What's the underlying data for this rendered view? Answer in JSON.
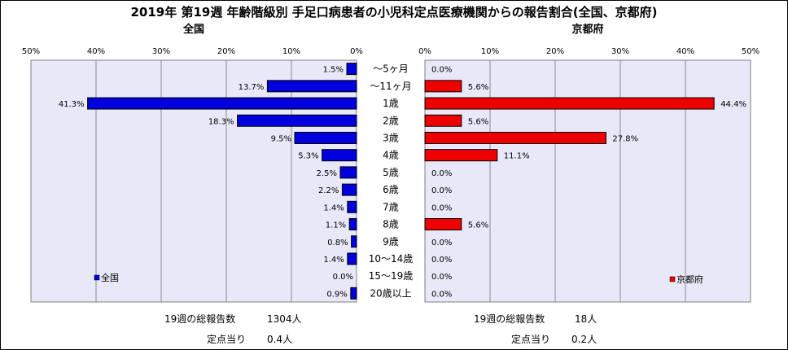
{
  "chart_data": {
    "type": "bar",
    "title": "2019年 第19週 年齢階級別 手足口病患者の小児科定点医療機関からの報告割合(全国、京都府)",
    "categories": [
      "～5ヶ月",
      "～11ヶ月",
      "1歳",
      "2歳",
      "3歳",
      "4歳",
      "5歳",
      "6歳",
      "7歳",
      "8歳",
      "9歳",
      "10～14歳",
      "15～19歳",
      "20歳以上"
    ],
    "xlim": [
      0,
      50
    ],
    "tick_labels": [
      "0%",
      "10%",
      "20%",
      "30%",
      "40%",
      "50%"
    ],
    "panels": [
      {
        "key": "national",
        "subtitle": "全国",
        "legend": "全国",
        "color": "#0000dd",
        "values": [
          1.5,
          13.7,
          41.3,
          18.3,
          9.5,
          5.3,
          2.5,
          2.2,
          1.4,
          1.1,
          0.8,
          1.4,
          0.0,
          0.9
        ],
        "value_labels": [
          "1.5%",
          "13.7%",
          "41.3%",
          "18.3%",
          "9.5%",
          "5.3%",
          "2.5%",
          "2.2%",
          "1.4%",
          "1.1%",
          "0.8%",
          "1.4%",
          "0.0%",
          "0.9%"
        ],
        "footer": {
          "total_label": "19週の総報告数",
          "total_value": "1304人",
          "per_label": "定点当り",
          "per_value": "0.4人"
        }
      },
      {
        "key": "kyoto",
        "subtitle": "京都府",
        "legend": "京都府",
        "color": "#ee0000",
        "values": [
          0.0,
          5.6,
          44.4,
          5.6,
          27.8,
          11.1,
          0.0,
          0.0,
          0.0,
          5.6,
          0.0,
          0.0,
          0.0,
          0.0
        ],
        "value_labels": [
          "0.0%",
          "5.6%",
          "44.4%",
          "5.6%",
          "27.8%",
          "11.1%",
          "0.0%",
          "0.0%",
          "0.0%",
          "5.6%",
          "0.0%",
          "0.0%",
          "0.0%",
          "0.0%"
        ],
        "footer": {
          "total_label": "19週の総報告数",
          "total_value": "18人",
          "per_label": "定点当り",
          "per_value": "0.2人"
        }
      }
    ],
    "grid": true,
    "plot_background": "#e8e8f8"
  }
}
